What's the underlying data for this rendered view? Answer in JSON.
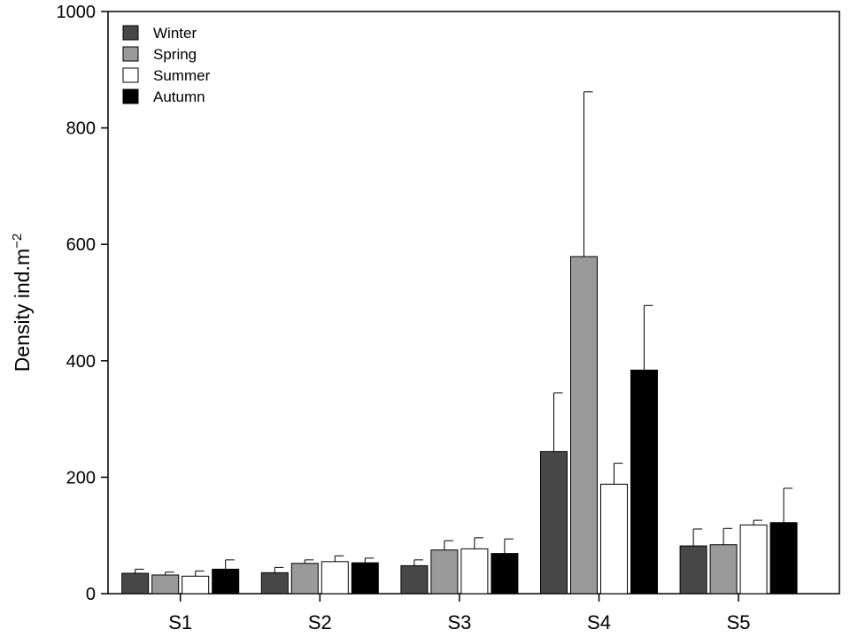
{
  "chart_data": {
    "type": "bar",
    "title": "",
    "xlabel": "",
    "ylabel": "Density ind.m",
    "ylabel_superscript": "−2",
    "categories": [
      "S1",
      "S2",
      "S3",
      "S4",
      "S5"
    ],
    "ylim": [
      0,
      1000
    ],
    "yticks": [
      "0",
      "200",
      "400",
      "600",
      "800",
      "1000"
    ],
    "legend_placement": "top-left",
    "grid": false,
    "series": [
      {
        "name": "Winter",
        "color": "#474747",
        "values": [
          35,
          36,
          48,
          244,
          82
        ],
        "errors": [
          7,
          9,
          10,
          101,
          29
        ]
      },
      {
        "name": "Spring",
        "color": "#9a9a9a",
        "values": [
          32,
          52,
          75,
          579,
          84
        ],
        "errors": [
          5,
          6,
          16,
          283,
          28
        ]
      },
      {
        "name": "Summer",
        "color": "#ffffff",
        "values": [
          30,
          55,
          77,
          188,
          118
        ],
        "errors": [
          9,
          10,
          19,
          36,
          8
        ]
      },
      {
        "name": "Autumn",
        "color": "#000000",
        "values": [
          42,
          53,
          69,
          384,
          122
        ],
        "errors": [
          16,
          8,
          25,
          111,
          59
        ]
      }
    ]
  }
}
